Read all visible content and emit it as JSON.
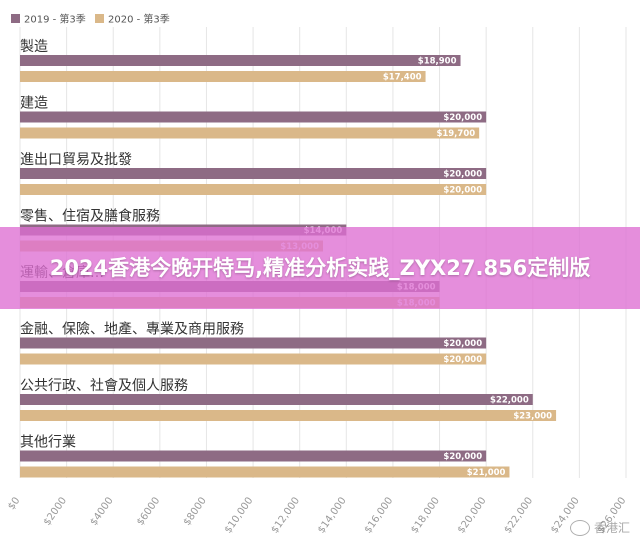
{
  "chart_data": {
    "type": "bar",
    "orientation": "horizontal",
    "categories": [
      "製造",
      "建造",
      "進出口貿易及批發",
      "零售、住宿及膳食服務",
      "運輸、倉庫…",
      "金融、保險、地產、專業及商用服務",
      "公共行政、社會及個人服務",
      "其他行業"
    ],
    "series": [
      {
        "name": "2019 - 第3季",
        "color": "#8e6b84",
        "values": [
          18900,
          20000,
          20000,
          14000,
          18000,
          20000,
          22000,
          20000
        ],
        "labels": [
          "$18,900",
          "$20,000",
          "$20,000",
          "$14,000",
          "$18,000",
          "$20,000",
          "$22,000",
          "$20,000"
        ]
      },
      {
        "name": "2020 - 第3季",
        "color": "#dab889",
        "values": [
          17400,
          19700,
          20000,
          13000,
          18000,
          20000,
          23000,
          21000
        ],
        "labels": [
          "$17,400",
          "$19,700",
          "$20,000",
          "$13,000",
          "$18,000",
          "$20,000",
          "$23,000",
          "$21,000"
        ]
      }
    ],
    "xlim": [
      0,
      26000
    ],
    "xticks": [
      0,
      2000,
      4000,
      6000,
      8000,
      10000,
      12000,
      14000,
      16000,
      18000,
      20000,
      22000,
      24000,
      26000
    ],
    "xtick_labels": [
      "$0",
      "$2000",
      "$4000",
      "$6000",
      "$8000",
      "$10,000",
      "$12,000",
      "$14,000",
      "$16,000",
      "$18,000",
      "$20,000",
      "$22,000",
      "$24,000",
      "$26,000"
    ],
    "grid": true,
    "legend": "top-left"
  },
  "banner": {
    "text": "2024香港今晚开特马,精准分析实践_ZYX27.856定制版"
  },
  "watermark": {
    "text": "香港汇"
  }
}
